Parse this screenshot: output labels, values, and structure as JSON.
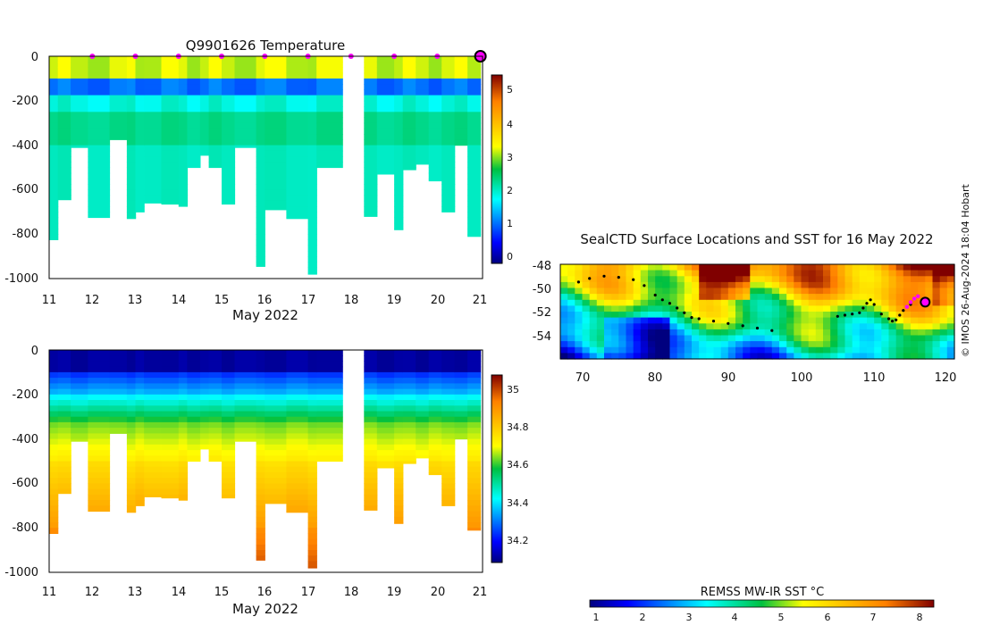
{
  "chart_data": [
    {
      "type": "heatmap",
      "title": "Q9901626  Temperature",
      "xlabel": "May 2022",
      "xlim": [
        11,
        21.05
      ],
      "ylim": [
        -1000,
        0
      ],
      "xticks": [
        "11",
        "12",
        "13",
        "14",
        "15",
        "16",
        "17",
        "18",
        "19",
        "20",
        "21"
      ],
      "yticks": [
        "0",
        "-200",
        "-400",
        "-600",
        "-800",
        "-1000"
      ],
      "colorbar": {
        "range": [
          -0.2,
          5.5
        ],
        "ticks": [
          "0",
          "1",
          "2",
          "3",
          "4",
          "5"
        ]
      },
      "surface_markers_days": [
        12,
        13,
        14,
        15,
        16,
        17,
        18,
        19,
        20
      ],
      "highlight_marker_day": 21,
      "profiles": [
        {
          "t": 11.0,
          "depth": 825
        },
        {
          "t": 11.2,
          "depth": 645
        },
        {
          "t": 11.5,
          "depth": 410
        },
        {
          "t": 11.9,
          "depth": 725
        },
        {
          "t": 12.4,
          "depth": 375
        },
        {
          "t": 12.8,
          "depth": 730
        },
        {
          "t": 13.0,
          "depth": 700
        },
        {
          "t": 13.2,
          "depth": 660
        },
        {
          "t": 13.6,
          "depth": 665
        },
        {
          "t": 14.0,
          "depth": 675
        },
        {
          "t": 14.2,
          "depth": 500
        },
        {
          "t": 14.5,
          "depth": 445
        },
        {
          "t": 14.7,
          "depth": 500
        },
        {
          "t": 15.0,
          "depth": 665
        },
        {
          "t": 15.3,
          "depth": 410
        },
        {
          "t": 15.8,
          "depth": 945
        },
        {
          "t": 16.0,
          "depth": 690
        },
        {
          "t": 16.5,
          "depth": 730
        },
        {
          "t": 17.0,
          "depth": 980
        },
        {
          "t": 17.2,
          "depth": 500
        }
      ],
      "profiles_after_gap": [
        {
          "t": 18.3,
          "depth": 720
        },
        {
          "t": 18.6,
          "depth": 530
        },
        {
          "t": 19.0,
          "depth": 780
        },
        {
          "t": 19.2,
          "depth": 510
        },
        {
          "t": 19.5,
          "depth": 485
        },
        {
          "t": 19.8,
          "depth": 560
        },
        {
          "t": 20.1,
          "depth": 700
        },
        {
          "t": 20.4,
          "depth": 400
        },
        {
          "t": 20.7,
          "depth": 810
        }
      ]
    },
    {
      "type": "heatmap",
      "title": "",
      "xlabel": "May 2022",
      "xlim": [
        11,
        21.05
      ],
      "ylim": [
        -1000,
        0
      ],
      "xticks": [
        "11",
        "12",
        "13",
        "14",
        "15",
        "16",
        "17",
        "18",
        "19",
        "20",
        "21"
      ],
      "yticks": [
        "0",
        "-200",
        "-400",
        "-600",
        "-800",
        "-1000"
      ],
      "colorbar": {
        "range": [
          34.05,
          35.1
        ],
        "ticks": [
          "34.2",
          "34.4",
          "34.6",
          "34.8",
          "35"
        ]
      }
    },
    {
      "type": "heatmap",
      "title": "SealCTD Surface Locations and SST for 16 May 2022",
      "xlim": [
        67,
        121
      ],
      "ylim": [
        -56,
        -48
      ],
      "xticks": [
        "70",
        "80",
        "90",
        "100",
        "110",
        "120"
      ],
      "yticks": [
        "-48",
        "-50",
        "-52",
        "-54"
      ],
      "colorbar": {
        "label": "REMSS MW-IR SST °C",
        "range": [
          0.9,
          8.3
        ],
        "ticks": [
          "1",
          "2",
          "3",
          "4",
          "5",
          "6",
          "7",
          "8"
        ]
      },
      "track_lon": [
        69.5,
        71,
        73,
        75,
        77,
        78.5,
        80,
        81,
        82,
        83,
        84,
        85,
        86,
        88,
        90,
        92,
        94,
        96
      ],
      "track_lat": [
        -49.5,
        -49.2,
        -49.0,
        -49.1,
        -49.3,
        -49.8,
        -50.6,
        -51.0,
        -51.3,
        -51.7,
        -52.1,
        -52.5,
        -52.6,
        -52.8,
        -53.0,
        -53.2,
        -53.4,
        -53.6
      ],
      "track2_lon": [
        105,
        106,
        107,
        108,
        108.5,
        109,
        109.5,
        110,
        111,
        112,
        112.5,
        113,
        113.5,
        114,
        115
      ],
      "track2_lat": [
        -52.4,
        -52.3,
        -52.2,
        -52.1,
        -51.7,
        -51.3,
        -51.0,
        -51.4,
        -52.2,
        -52.6,
        -52.8,
        -52.7,
        -52.3,
        -51.9,
        -51.4
      ],
      "recent_track_lon": [
        114.5,
        115,
        115.5,
        116
      ],
      "recent_track_lat": [
        -51.6,
        -51.2,
        -50.9,
        -50.7
      ],
      "current_position": {
        "lon": 117,
        "lat": -51.2
      }
    }
  ],
  "footer": {
    "copyright": "© IMOS 26-Aug-2024 18:04 Hobart"
  }
}
